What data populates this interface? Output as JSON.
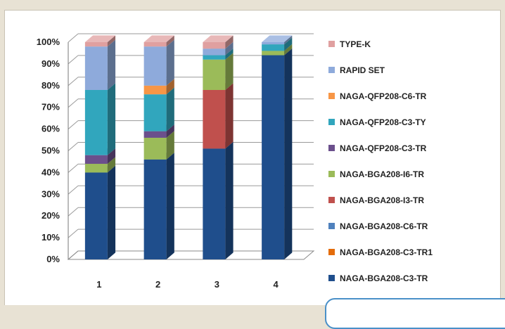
{
  "chart_data": {
    "type": "bar",
    "stacked": true,
    "percent": true,
    "three_d": true,
    "categories": [
      "1",
      "2",
      "3",
      "4"
    ],
    "y_ticks": [
      "0%",
      "10%",
      "20%",
      "30%",
      "40%",
      "50%",
      "60%",
      "70%",
      "80%",
      "90%",
      "100%"
    ],
    "ylim": [
      0,
      100
    ],
    "grid": true,
    "legend_position": "right",
    "series": [
      {
        "name": "NAGA-BGA208-C3-TR",
        "color": "#1f4e8c",
        "values": [
          40,
          46,
          51,
          94
        ]
      },
      {
        "name": "NAGA-BGA208-C3-TR1",
        "color": "#e46c0a",
        "values": [
          0,
          0,
          0,
          0
        ]
      },
      {
        "name": "NAGA-BGA208-C6-TR",
        "color": "#4f81bd",
        "values": [
          0,
          0,
          0,
          0
        ]
      },
      {
        "name": "NAGA-BGA208-I3-TR",
        "color": "#c0504d",
        "values": [
          0,
          0,
          27,
          0
        ]
      },
      {
        "name": "NAGA-BGA208-I6-TR",
        "color": "#9bbb59",
        "values": [
          4,
          10,
          14,
          2
        ]
      },
      {
        "name": "NAGA-QFP208-C3-TR",
        "color": "#6b4f8c",
        "values": [
          4,
          3,
          0,
          0
        ]
      },
      {
        "name": "NAGA-QFP208-C3-TY",
        "color": "#31a6bd",
        "values": [
          30,
          17,
          2,
          3
        ]
      },
      {
        "name": "NAGA-QFP208-C6-TR",
        "color": "#f79646",
        "values": [
          0,
          4,
          0,
          0
        ]
      },
      {
        "name": "RAPID SET",
        "color": "#8eaadb",
        "values": [
          20,
          18,
          3,
          1
        ]
      },
      {
        "name": "TYPE-K",
        "color": "#e0a0a0",
        "values": [
          2,
          2,
          3,
          0
        ]
      }
    ],
    "title": "",
    "xlabel": "",
    "ylabel": ""
  }
}
